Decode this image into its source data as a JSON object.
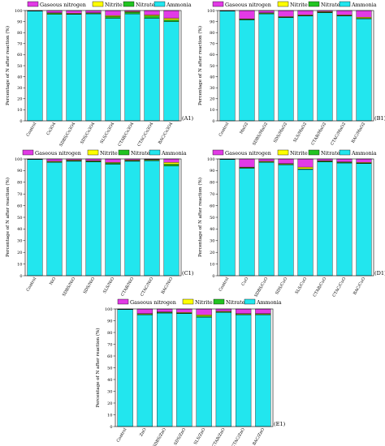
{
  "colors": {
    "gaseous_nitrogen": "#e23ae6",
    "nitrite": "#ffff00",
    "nitrate": "#22c422",
    "ammonia": "#22e6ee"
  },
  "chart_data": [
    {
      "type": "bar",
      "stacked": true,
      "panel_label": "(A1)",
      "ylabel": "Percentage of N after reaction (%)",
      "ylim": [
        0,
        100
      ],
      "yticks": [
        0,
        10,
        20,
        30,
        40,
        50,
        60,
        70,
        80,
        90,
        100
      ],
      "legend": [
        "Gaseous nitrogen",
        "Nitrite",
        "Nitrate",
        "Ammonia"
      ],
      "categories": [
        "Control",
        "Co3O4",
        "SDBS/Co3O4",
        "SDS/Co3O4",
        "SLS/Co3O4",
        "CTAB/Co3O4",
        "CTAC/Co3O4",
        "BAC/Co3O4"
      ],
      "series": [
        {
          "name": "Ammonia",
          "values": [
            99.5,
            96.5,
            96.5,
            97.0,
            93.0,
            97.0,
            93.0,
            90.0
          ]
        },
        {
          "name": "Nitrate",
          "values": [
            0.2,
            1.0,
            0.5,
            0.5,
            1.5,
            1.5,
            2.0,
            1.5
          ]
        },
        {
          "name": "Nitrite",
          "values": [
            0.1,
            0.5,
            0.5,
            0.5,
            1.0,
            0.5,
            1.0,
            1.5
          ]
        },
        {
          "name": "Gaseous nitrogen",
          "values": [
            0.2,
            2.0,
            2.5,
            2.0,
            4.5,
            1.0,
            4.0,
            7.0
          ]
        }
      ]
    },
    {
      "type": "bar",
      "stacked": true,
      "panel_label": "(B1)",
      "ylabel": "Percentage of N after reaction (%)",
      "ylim": [
        0,
        100
      ],
      "yticks": [
        0,
        10,
        20,
        30,
        40,
        50,
        60,
        70,
        80,
        90,
        100
      ],
      "legend": [
        "Gaseous nitrogen",
        "Nitrite",
        "Nitrate",
        "Ammonia"
      ],
      "categories": [
        "Control",
        "MnO2",
        "SDBS/MnO2",
        "SDS/MnO2",
        "SLS/MnO2",
        "CTAB/MnO2",
        "CTAC/MnO2",
        "BAC/MnO2"
      ],
      "series": [
        {
          "name": "Ammonia",
          "values": [
            99.5,
            91.5,
            97.0,
            93.5,
            95.0,
            98.0,
            95.0,
            92.5
          ]
        },
        {
          "name": "Nitrate",
          "values": [
            0.2,
            0.5,
            0.5,
            0.5,
            0.5,
            0.5,
            0.5,
            0.5
          ]
        },
        {
          "name": "Nitrite",
          "values": [
            0.1,
            0.5,
            0.5,
            0.5,
            0.5,
            0.5,
            0.5,
            1.0
          ]
        },
        {
          "name": "Gaseous nitrogen",
          "values": [
            0.2,
            7.5,
            2.0,
            5.5,
            4.0,
            1.0,
            4.0,
            6.0
          ]
        }
      ]
    },
    {
      "type": "bar",
      "stacked": true,
      "panel_label": "(C1)",
      "ylabel": "Percentage of N after reaction (%)",
      "ylim": [
        0,
        100
      ],
      "yticks": [
        0,
        10,
        20,
        30,
        40,
        50,
        60,
        70,
        80,
        90,
        100
      ],
      "legend": [
        "Gaseous nitrogen",
        "Nitrite",
        "Nitrate",
        "Ammonia"
      ],
      "categories": [
        "Control",
        "NiO",
        "SDBS/NiO",
        "SDS/NiO",
        "SLS/NiO",
        "CTAB/NiO",
        "CTAC/NiO",
        "BAC/NiO"
      ],
      "series": [
        {
          "name": "Ammonia",
          "values": [
            99.5,
            97.0,
            98.0,
            97.5,
            95.5,
            98.0,
            98.5,
            94.0
          ]
        },
        {
          "name": "Nitrate",
          "values": [
            0.2,
            0.5,
            0.5,
            0.5,
            1.0,
            0.5,
            0.5,
            1.5
          ]
        },
        {
          "name": "Nitrite",
          "values": [
            0.1,
            0.5,
            0.5,
            0.5,
            0.5,
            0.5,
            0.5,
            1.5
          ]
        },
        {
          "name": "Gaseous nitrogen",
          "values": [
            0.2,
            2.0,
            1.0,
            1.5,
            3.0,
            1.0,
            0.5,
            3.0
          ]
        }
      ]
    },
    {
      "type": "bar",
      "stacked": true,
      "panel_label": "(D1)",
      "ylabel": "Percentage of N after reaction (%)",
      "ylim": [
        0,
        100
      ],
      "yticks": [
        0,
        10,
        20,
        30,
        40,
        50,
        60,
        70,
        80,
        90,
        100
      ],
      "legend": [
        "Gaseous nitrogen",
        "Nitrite",
        "Nitrate",
        "Ammonia"
      ],
      "categories": [
        "Control",
        "CuO",
        "SDBS/CuO",
        "SDS/CuO",
        "SLS/CuO",
        "CTAB/CuO",
        "CTAC/CuO",
        "BAC/CuO"
      ],
      "series": [
        {
          "name": "Ammonia",
          "values": [
            99.5,
            92.0,
            97.0,
            95.0,
            91.0,
            97.5,
            96.5,
            96.0
          ]
        },
        {
          "name": "Nitrate",
          "values": [
            0.2,
            0.5,
            0.5,
            0.5,
            0.5,
            0.5,
            0.5,
            0.5
          ]
        },
        {
          "name": "Nitrite",
          "values": [
            0.1,
            0.5,
            0.5,
            0.5,
            1.5,
            0.5,
            0.5,
            0.5
          ]
        },
        {
          "name": "Gaseous nitrogen",
          "values": [
            0.2,
            7.0,
            2.0,
            4.0,
            7.0,
            1.5,
            2.5,
            3.0
          ]
        }
      ]
    },
    {
      "type": "bar",
      "stacked": true,
      "panel_label": "(E1)",
      "ylabel": "Percentage of N after reaction (%)",
      "ylim": [
        0,
        100
      ],
      "yticks": [
        0,
        10,
        20,
        30,
        40,
        50,
        60,
        70,
        80,
        90,
        100
      ],
      "legend": [
        "Gaseous nitrogen",
        "Nitrite",
        "Nitrate",
        "Ammonia"
      ],
      "categories": [
        "Control",
        "ZnO",
        "SDBS/ZnO",
        "SDS/ZnO",
        "SLS/ZnO",
        "CTAB/ZnO",
        "CTAC/ZnO",
        "BAC/ZnO"
      ],
      "series": [
        {
          "name": "Ammonia",
          "values": [
            99.5,
            95.0,
            96.5,
            96.0,
            93.0,
            97.0,
            95.0,
            95.0
          ]
        },
        {
          "name": "Nitrate",
          "values": [
            0.2,
            0.5,
            0.5,
            0.5,
            1.0,
            0.5,
            0.5,
            0.5
          ]
        },
        {
          "name": "Nitrite",
          "values": [
            0.1,
            0.5,
            0.5,
            0.5,
            1.0,
            0.5,
            0.5,
            0.5
          ]
        },
        {
          "name": "Gaseous nitrogen",
          "values": [
            0.2,
            4.0,
            2.5,
            3.0,
            5.0,
            2.0,
            4.0,
            4.0
          ]
        }
      ]
    }
  ]
}
